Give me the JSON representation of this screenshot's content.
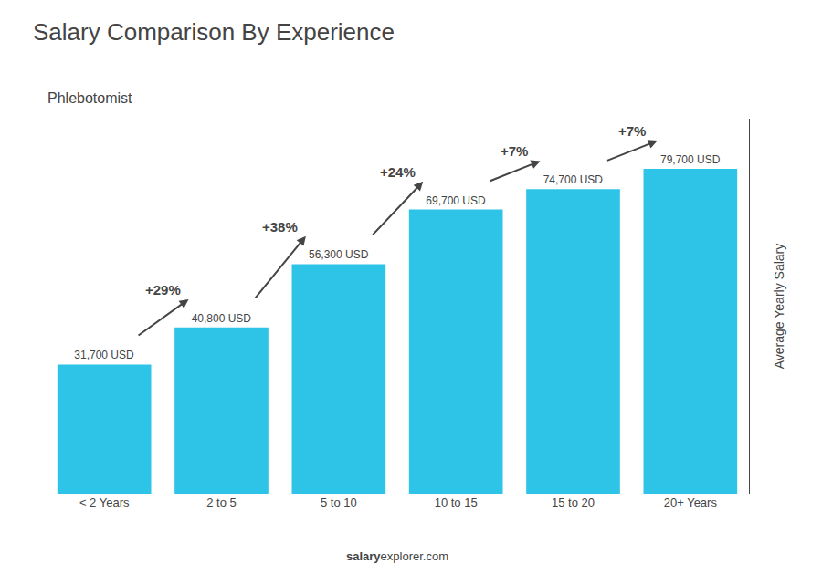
{
  "chart_data": {
    "type": "bar",
    "title": "Salary Comparison By Experience",
    "subtitle": "Phlebotomist",
    "categories": [
      "< 2 Years",
      "2 to 5",
      "5 to 10",
      "10 to 15",
      "15 to 20",
      "20+ Years"
    ],
    "values": [
      31700,
      40800,
      56300,
      69700,
      74700,
      79700
    ],
    "value_labels": [
      "31,700 USD",
      "40,800 USD",
      "56,300 USD",
      "69,700 USD",
      "74,700 USD",
      "79,700 USD"
    ],
    "data_labels": true,
    "annotations": [
      "+29%",
      "+38%",
      "+24%",
      "+7%",
      "+7%"
    ],
    "footer": [
      "salary",
      "explorer.com"
    ],
    "ylabel": "Average Yearly Salary",
    "color": "#2ec4e8",
    "ylim": [
      0,
      92000
    ],
    "grid": false,
    "tick_labels": "x"
  }
}
